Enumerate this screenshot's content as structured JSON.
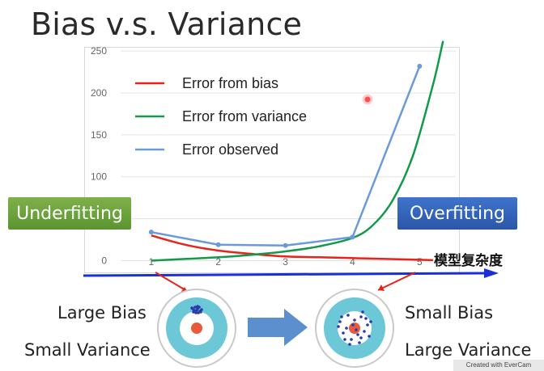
{
  "slide": {
    "title": "Bias v.s. Variance",
    "underfitting_label": "Underfitting",
    "overfitting_label": "Overfitting",
    "complexity_label": "模型复杂度",
    "left_target": {
      "label_top": "Large Bias",
      "label_bottom": "Small Variance"
    },
    "right_target": {
      "label_top": "Small Bias",
      "label_bottom": "Large Variance"
    },
    "watermark": "Created with EverCam"
  },
  "colors": {
    "bias": "#e8231c",
    "variance": "#12994a",
    "observed": "#6a9ad8",
    "axis_arrow": "#1a2fd8",
    "underfitting_bg": "#6aa33b",
    "overfitting_bg": "#3566c0",
    "target_ring": "#67c6d6",
    "target_center": "#e85a3b"
  },
  "chart_data": {
    "type": "line",
    "x": [
      1,
      2,
      3,
      4,
      5
    ],
    "xticks": [
      "1",
      "2",
      "3",
      "4",
      "5"
    ],
    "yticks": [
      "0",
      "50",
      "100",
      "150",
      "200",
      "250"
    ],
    "xlim": [
      0.0,
      5.6
    ],
    "ylim": [
      -15,
      255
    ],
    "grid": "horizontal",
    "legend": "top-left",
    "series": [
      {
        "name": "Error from bias",
        "key": "bias",
        "x": [
          1,
          1.5,
          2,
          2.5,
          3,
          3.5,
          4,
          4.5,
          5,
          5.2
        ],
        "values": [
          30,
          19,
          12,
          8,
          5,
          4,
          3,
          2,
          1,
          0.5
        ]
      },
      {
        "name": "Error from variance",
        "key": "variance",
        "x": [
          1,
          1.5,
          2,
          2.5,
          3,
          3.5,
          4,
          4.3,
          4.6,
          4.9,
          5.2,
          5.35
        ],
        "values": [
          0,
          2,
          4,
          7,
          11,
          17,
          27,
          42,
          72,
          125,
          210,
          262
        ]
      },
      {
        "name": "Error observed",
        "key": "observed",
        "x": [
          1,
          2,
          3,
          4,
          5
        ],
        "values": [
          34,
          19,
          18,
          28,
          232
        ]
      }
    ]
  }
}
